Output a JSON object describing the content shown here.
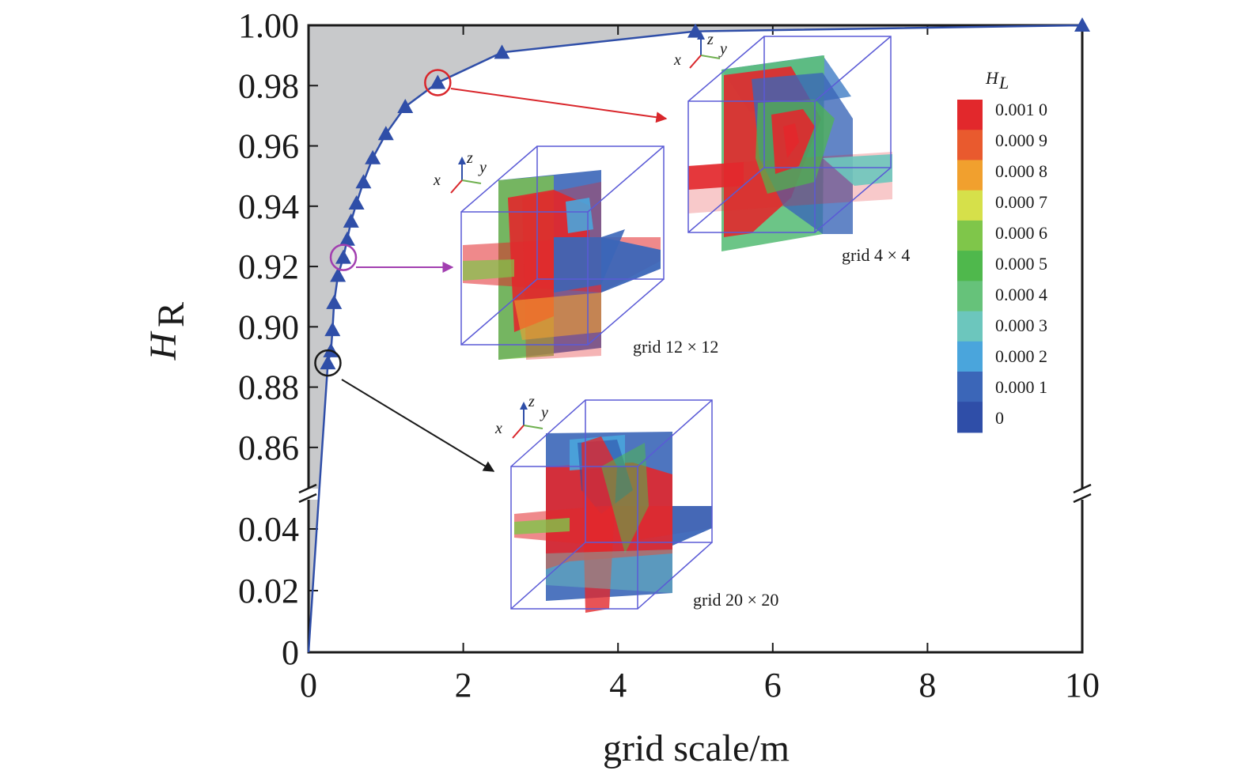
{
  "chart_data": {
    "type": "line",
    "xlabel": "grid scale/m",
    "ylabel": {
      "main": "H",
      "sub": "R"
    },
    "xlim": [
      0,
      10
    ],
    "upper_ylim": [
      0.85,
      1.0
    ],
    "lower_ylim": [
      0,
      0.05
    ],
    "broken_y_axis": true,
    "x_ticks": [
      "0",
      "2",
      "4",
      "6",
      "8",
      "10"
    ],
    "y_ticks_upper": [
      "1.00",
      "0.98",
      "0.96",
      "0.94",
      "0.92",
      "0.90",
      "0.88",
      "0.86"
    ],
    "y_ticks_lower": [
      "0.04",
      "0.02",
      "0"
    ],
    "series": [
      {
        "color": "#2f4ea8",
        "points": [
          {
            "x": 0.25,
            "y": 0.888
          },
          {
            "x": 0.29,
            "y": 0.892
          },
          {
            "x": 0.31,
            "y": 0.899
          },
          {
            "x": 0.33,
            "y": 0.908
          },
          {
            "x": 0.38,
            "y": 0.917
          },
          {
            "x": 0.45,
            "y": 0.923
          },
          {
            "x": 0.5,
            "y": 0.929
          },
          {
            "x": 0.55,
            "y": 0.935
          },
          {
            "x": 0.62,
            "y": 0.941
          },
          {
            "x": 0.71,
            "y": 0.948
          },
          {
            "x": 0.83,
            "y": 0.956
          },
          {
            "x": 1.0,
            "y": 0.964
          },
          {
            "x": 1.25,
            "y": 0.973
          },
          {
            "x": 1.67,
            "y": 0.981
          },
          {
            "x": 2.5,
            "y": 0.991
          },
          {
            "x": 5.0,
            "y": 0.998
          },
          {
            "x": 10.0,
            "y": 1.0
          }
        ]
      }
    ],
    "shading": "grey region above curve (upper-left)",
    "highlights": [
      {
        "x": 1.67,
        "y": 0.981,
        "color": "#d9262b",
        "target": "grid 4 × 4"
      },
      {
        "x": 0.45,
        "y": 0.923,
        "color": "#a23fb0",
        "target": "grid 12 × 12"
      },
      {
        "x": 0.25,
        "y": 0.888,
        "color": "#1a1a1a",
        "target": "grid 20 × 20"
      }
    ],
    "insets": [
      {
        "label": "grid 4 × 4"
      },
      {
        "label": "grid 12 × 12"
      },
      {
        "label": "grid 20 × 20"
      }
    ],
    "axis_letters": {
      "x": "x",
      "y": "y",
      "z": "z"
    },
    "colorbar": {
      "title_main": "H",
      "title_sub": "L",
      "labels": [
        "0.001 0",
        "0.000 9",
        "0.000 8",
        "0.000 7",
        "0.000 6",
        "0.000 5",
        "0.000 4",
        "0.000 3",
        "0.000 2",
        "0.000 1",
        "0"
      ],
      "colors": [
        "#e2282c",
        "#e95a2e",
        "#f1a02e",
        "#d6e04a",
        "#7fc64a",
        "#4fb84c",
        "#66c27a",
        "#6cc6bd",
        "#4aa5dc",
        "#3b66b8",
        "#2f4ea8"
      ]
    }
  }
}
